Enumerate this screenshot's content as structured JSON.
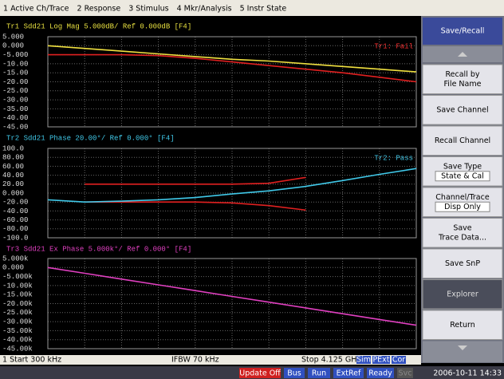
{
  "menu": [
    "1 Active Ch/Trace",
    "2 Response",
    "3 Stimulus",
    "4 Mkr/Analysis",
    "5 Instr State"
  ],
  "panels": [
    {
      "header": "Tr1  Sdd21  Log Mag 5.000dB/ Ref 0.000dB [F4]",
      "header_color": "#e8e040",
      "status": "Tr1: Fail",
      "status_color": "#ff3030",
      "ylim": [
        -45,
        5
      ],
      "yticks": [
        {
          "value": 5,
          "label": "5.000"
        },
        {
          "value": 0,
          "label": "0.000"
        },
        {
          "value": -5,
          "label": "-5.000"
        },
        {
          "value": -10,
          "label": "-10.00"
        },
        {
          "value": -15,
          "label": "-15.00"
        },
        {
          "value": -20,
          "label": "-20.00"
        },
        {
          "value": -25,
          "label": "-25.00"
        },
        {
          "value": -30,
          "label": "-30.00"
        },
        {
          "value": -35,
          "label": "-35.00"
        },
        {
          "value": -40,
          "label": "-40.00"
        },
        {
          "value": -45,
          "label": "-45.00"
        }
      ],
      "traces": [
        {
          "color": "#e02020",
          "values": [
            -5,
            -5,
            -5,
            -5.5,
            -7,
            -9,
            -11,
            -13,
            -15,
            -17.5,
            -20
          ]
        },
        {
          "color": "#f0e040",
          "values": [
            0,
            -1.5,
            -3,
            -4.5,
            -6,
            -7.5,
            -8.5,
            -10,
            -11.5,
            -13,
            -14.5
          ]
        }
      ]
    },
    {
      "header": "Tr2  Sdd21  Phase 20.00°/ Ref 0.000° [F4]",
      "header_color": "#40c8e8",
      "status": "Tr2: Pass",
      "status_color": "#40c8e8",
      "ylim": [
        -100,
        100
      ],
      "yticks": [
        {
          "value": 100,
          "label": "100.0"
        },
        {
          "value": 80,
          "label": "80.00"
        },
        {
          "value": 60,
          "label": "60.00"
        },
        {
          "value": 40,
          "label": "40.00"
        },
        {
          "value": 20,
          "label": "20.00"
        },
        {
          "value": 0,
          "label": "0.000"
        },
        {
          "value": -20,
          "label": "-20.00"
        },
        {
          "value": -40,
          "label": "-40.00"
        },
        {
          "value": -60,
          "label": "-60.00"
        },
        {
          "value": -80,
          "label": "-80.00"
        },
        {
          "value": -100,
          "label": "-100.0"
        }
      ],
      "traces": [
        {
          "color": "#e02020",
          "values": [
            null,
            20,
            20,
            20,
            20,
            20,
            22,
            35,
            null,
            null,
            null
          ]
        },
        {
          "color": "#e02020",
          "values": [
            null,
            -20,
            -20,
            -20,
            -20,
            -22,
            -28,
            -38,
            null,
            null,
            null
          ]
        },
        {
          "color": "#40c8e8",
          "values": [
            -15,
            -20,
            -18,
            -15,
            -10,
            -2,
            5,
            15,
            28,
            42,
            55
          ]
        }
      ]
    },
    {
      "header": "Tr3  Sdd21  Ex Phase 5.000k°/ Ref 0.000° [F4]",
      "header_color": "#e040c0",
      "ylim": [
        -45000,
        5000
      ],
      "yticks": [
        {
          "value": 5000,
          "label": "5.000k"
        },
        {
          "value": 0,
          "label": "0.000"
        },
        {
          "value": -5000,
          "label": "-5.000k"
        },
        {
          "value": -10000,
          "label": "-10.00k"
        },
        {
          "value": -15000,
          "label": "-15.00k"
        },
        {
          "value": -20000,
          "label": "-20.00k"
        },
        {
          "value": -25000,
          "label": "-25.00k"
        },
        {
          "value": -30000,
          "label": "-30.00k"
        },
        {
          "value": -35000,
          "label": "-35.00k"
        },
        {
          "value": -40000,
          "label": "-40.00k"
        },
        {
          "value": -45000,
          "label": "-45.00k"
        }
      ],
      "traces": [
        {
          "color": "#e040c0",
          "values": [
            0,
            -3200,
            -6400,
            -9600,
            -12800,
            -16000,
            -19200,
            -22400,
            -25600,
            -28800,
            -32000
          ]
        }
      ]
    }
  ],
  "footer": {
    "start": "1  Start 300 kHz",
    "ifbw": "IFBW 70 kHz",
    "stop": "Stop 4.125 GHz",
    "flags": [
      "Sim",
      "PExt",
      "Cor"
    ]
  },
  "status_bar": {
    "items": [
      "Update Off",
      "Bus",
      "Run",
      "ExtRef",
      "Ready",
      "Svc"
    ],
    "datetime": "2006-10-11 14:33"
  },
  "softkeys": {
    "title": "Save/Recall",
    "keys": [
      {
        "lines": [
          "Recall by",
          "File Name"
        ]
      },
      {
        "lines": [
          "Save Channel"
        ]
      },
      {
        "lines": [
          "Recall Channel"
        ]
      },
      {
        "lines": [
          "Save Type"
        ],
        "value": "State & Cal"
      },
      {
        "lines": [
          "Channel/Trace"
        ],
        "value": "Disp Only"
      },
      {
        "lines": [
          "Save",
          "Trace Data..."
        ]
      },
      {
        "lines": [
          "Save SnP"
        ]
      },
      {
        "lines": [
          "Explorer"
        ]
      },
      {
        "lines": [
          "Return"
        ]
      }
    ]
  }
}
